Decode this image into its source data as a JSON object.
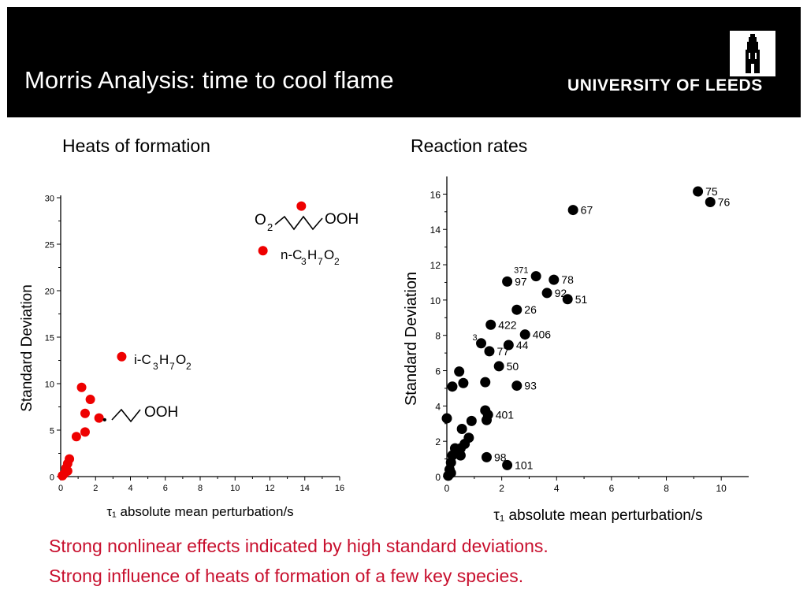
{
  "header": {
    "title": "Morris Analysis: time to cool flame",
    "university": "UNIVERSITY OF LEEDS",
    "logo_icon": "university-tower-logo-icon"
  },
  "colors": {
    "header_bg": "#000000",
    "title_text": "#ffffff",
    "caption": "#c8102e",
    "heat_points": "#ee0000",
    "rate_points": "#000000"
  },
  "captions": [
    "Strong nonlinear effects indicated by high standard deviations.",
    "Strong influence of heats of formation of a few key species."
  ],
  "chart_data": [
    {
      "title": "Heats of formation",
      "type": "scatter",
      "xlabel": "τ₁ absolute mean perturbation/s",
      "ylabel": "Standard Deviation",
      "xlim": [
        0,
        16
      ],
      "ylim": [
        0,
        30
      ],
      "xticks": [
        0,
        2,
        4,
        6,
        8,
        10,
        12,
        14,
        16
      ],
      "yticks": [
        0,
        5,
        10,
        15,
        20,
        25,
        30
      ],
      "grid": false,
      "marker_color": "#ee0000",
      "points": [
        {
          "x": 13.8,
          "y": 29.1
        },
        {
          "x": 11.6,
          "y": 24.3
        },
        {
          "x": 3.5,
          "y": 12.9
        },
        {
          "x": 1.2,
          "y": 9.6
        },
        {
          "x": 1.7,
          "y": 8.3
        },
        {
          "x": 1.4,
          "y": 6.8
        },
        {
          "x": 2.2,
          "y": 6.3
        },
        {
          "x": 1.4,
          "y": 4.8
        },
        {
          "x": 0.9,
          "y": 4.3
        },
        {
          "x": 0.5,
          "y": 1.9
        },
        {
          "x": 0.4,
          "y": 1.4
        },
        {
          "x": 0.3,
          "y": 0.9
        },
        {
          "x": 0.4,
          "y": 0.6
        },
        {
          "x": 0.2,
          "y": 0.3
        },
        {
          "x": 0.1,
          "y": 0.1
        }
      ],
      "annotations": {
        "peroxy_left": "O",
        "peroxy_sub": "2",
        "peroxy_right": "OOH",
        "npropyl_a": "n-C",
        "npropyl_b": "3",
        "npropyl_c": "H",
        "npropyl_d": "7",
        "npropyl_e": "O",
        "npropyl_f": "2",
        "ipropyl_a": "i-C",
        "ipropyl_b": "3",
        "ipropyl_c": "H",
        "ipropyl_d": "7",
        "ipropyl_e": "O",
        "ipropyl_f": "2",
        "radical_dot": "•",
        "radical_right": "OOH"
      }
    },
    {
      "title": "Reaction rates",
      "type": "scatter",
      "xlabel": "τ₁ absolute mean perturbation/s",
      "ylabel": "Standard Deviation",
      "xlim": [
        0,
        11
      ],
      "ylim": [
        0,
        17
      ],
      "xticks": [
        0,
        2,
        4,
        6,
        8,
        10
      ],
      "yticks": [
        0,
        2,
        4,
        6,
        8,
        10,
        12,
        14,
        16
      ],
      "grid": false,
      "marker_color": "#000000",
      "points": [
        {
          "x": 9.15,
          "y": 16.15,
          "label": "75"
        },
        {
          "x": 9.6,
          "y": 15.55,
          "label": "76"
        },
        {
          "x": 4.6,
          "y": 15.1,
          "label": "67"
        },
        {
          "x": 3.25,
          "y": 11.35,
          "label": "371"
        },
        {
          "x": 2.2,
          "y": 11.05,
          "label": "97"
        },
        {
          "x": 3.9,
          "y": 11.15,
          "label": "78"
        },
        {
          "x": 3.65,
          "y": 10.4,
          "label": "92"
        },
        {
          "x": 4.4,
          "y": 10.05,
          "label": "51"
        },
        {
          "x": 2.55,
          "y": 9.45,
          "label": "26"
        },
        {
          "x": 1.6,
          "y": 8.6,
          "label": "422"
        },
        {
          "x": 2.85,
          "y": 8.05,
          "label": "406"
        },
        {
          "x": 1.25,
          "y": 7.55,
          "label": "3"
        },
        {
          "x": 2.25,
          "y": 7.45,
          "label": "44"
        },
        {
          "x": 1.55,
          "y": 7.1,
          "label": "77"
        },
        {
          "x": 1.9,
          "y": 6.25,
          "label": "50"
        },
        {
          "x": 2.55,
          "y": 5.15,
          "label": "93"
        },
        {
          "x": 1.5,
          "y": 3.5,
          "label": "401"
        },
        {
          "x": 1.45,
          "y": 1.1,
          "label": "98"
        },
        {
          "x": 2.2,
          "y": 0.65,
          "label": "101"
        },
        {
          "x": 0.45,
          "y": 5.95
        },
        {
          "x": 0.2,
          "y": 5.1
        },
        {
          "x": 0.6,
          "y": 5.3
        },
        {
          "x": 1.4,
          "y": 5.35
        },
        {
          "x": 0.0,
          "y": 3.3
        },
        {
          "x": 0.9,
          "y": 3.15
        },
        {
          "x": 1.4,
          "y": 3.75
        },
        {
          "x": 1.45,
          "y": 3.2
        },
        {
          "x": 0.55,
          "y": 2.7
        },
        {
          "x": 0.8,
          "y": 2.2
        },
        {
          "x": 0.65,
          "y": 1.85
        },
        {
          "x": 0.5,
          "y": 1.6
        },
        {
          "x": 0.3,
          "y": 1.6
        },
        {
          "x": 0.2,
          "y": 1.2
        },
        {
          "x": 0.5,
          "y": 1.2
        },
        {
          "x": 0.15,
          "y": 0.8
        },
        {
          "x": 0.1,
          "y": 0.4
        },
        {
          "x": 0.15,
          "y": 0.2
        },
        {
          "x": 0.05,
          "y": 0.05
        }
      ]
    }
  ]
}
